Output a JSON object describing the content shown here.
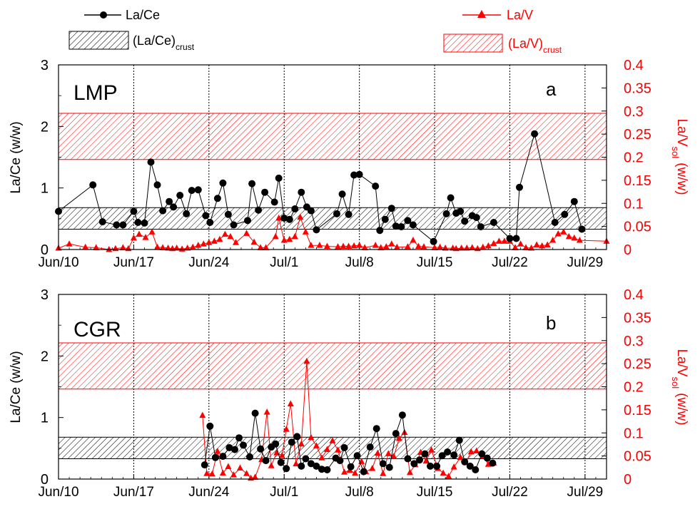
{
  "legend": {
    "la_ce": "La/Ce",
    "la_ce_crust": "(La/Ce)",
    "crust_sub": "crust",
    "la_v": "La/V",
    "la_v_crust": "(La/V)"
  },
  "colors": {
    "la_ce": "#000000",
    "la_v": "#ff0000",
    "crust_band_black": "#000000",
    "crust_band_red": "#ff0000",
    "grid": "#000000"
  },
  "chart_data": [
    {
      "type": "line",
      "panel_label": "LMP",
      "panel_letter": "a",
      "ylabel_left": "La/Ce (w/w)",
      "ylabel_right_main": "La/V",
      "ylabel_right_sub": "sol",
      "ylabel_right_tail": "(w/w)",
      "x_axis": "date",
      "xlim": [
        "Jun/10",
        "Jul/31"
      ],
      "xticks": [
        "Jun/10",
        "Jun/17",
        "Jun/24",
        "Jul/1",
        "Jul/8",
        "Jul/15",
        "Jul/22",
        "Jul/29"
      ],
      "ylim_left": [
        0,
        3
      ],
      "yticks_left": [
        "0",
        "1",
        "2",
        "3"
      ],
      "ylim_right": [
        0,
        0.4
      ],
      "yticks_right": [
        "0",
        "0.05",
        "0.1",
        "0.15",
        "0.2",
        "0.25",
        "0.3",
        "0.35",
        "0.4"
      ],
      "grid": "vertical dotted lines at weekly ticks",
      "bands": [
        {
          "name": "(La/Ce)crust",
          "axis": "left",
          "range": [
            0.33,
            0.68
          ],
          "hatch": "black"
        },
        {
          "name": "(La/V)crust",
          "axis": "right",
          "range": [
            0.195,
            0.295
          ],
          "hatch": "red"
        }
      ],
      "series": [
        {
          "name": "La/Ce",
          "axis": "left",
          "marker": "circle",
          "x": [
            "Jun/10",
            "Jun/13",
            "Jun/14",
            "Jun/15.7",
            "Jun/16.1",
            "Jun/17",
            "Jun/17.5",
            "Jun/18",
            "Jun/18.6",
            "Jun/19",
            "Jun/19.5",
            "Jun/20",
            "Jun/20.5",
            "Jun/21",
            "Jun/21.6",
            "Jun/22",
            "Jun/22.5",
            "Jun/23.1",
            "Jun/23.6",
            "Jun/24.1",
            "Jun/24.6",
            "Jun/25",
            "Jun/26.5",
            "Jun/27",
            "Jun/27.5",
            "Jun/28.6",
            "Jun/29",
            "Jun/29.5",
            "Jun/30",
            "Jun/30.5",
            "Jul/1",
            "Jul/1.5",
            "Jul/2",
            "Jul/2.5",
            "Jul/3",
            "Jul/4.5",
            "Jul/5",
            "Jul/5.5",
            "Jul/6",
            "Jul/7.6",
            "Jul/8",
            "Jul/8.4",
            "Jul/9",
            "Jul/9.4",
            "Jul/9.8",
            "Jul/10.3",
            "Jul/10.7",
            "Jul/12",
            "Jul/13",
            "Jul/13.5",
            "Jul/14",
            "Jul/14.3",
            "Jul/14.6",
            "Jul/15",
            "Jul/15.5",
            "Jul/16",
            "Jul/16.4",
            "Jul/17",
            "Jul/18",
            "Jul/19",
            "Jul/19.5",
            "Jul/20",
            "Jul/21",
            "Jul/21.5",
            "Jul/22.7",
            "Jul/23",
            "Jul/24",
            "Jul/24.6",
            "Jul/25",
            "Jul/26",
            "Jul/27"
          ],
          "y": [
            0.62,
            1.05,
            0.45,
            0.4,
            0.4,
            0.62,
            0.45,
            0.44,
            1.42,
            1.05,
            0.63,
            0.79,
            0.69,
            0.88,
            0.58,
            0.96,
            0.98,
            0.55,
            0.44,
            0.83,
            1.07,
            0.57,
            0.41,
            0.47,
            1.08,
            0.63,
            0.92,
            0.77,
            1.16,
            0.51,
            0.48,
            0.66,
            0.93,
            0.69,
            0.64,
            0.33,
            0.58,
            0.89,
            0.58,
            1.21,
            1.22,
            1.03,
            0.31,
            0.49,
            0.66,
            0.37,
            0.36,
            0.46,
            0.39,
            0.12,
            0.58,
            0.84,
            0.58,
            0.61,
            0.62,
            0.45,
            0.55,
            0.52,
            0.36,
            0.44,
            0.18,
            0.18,
            1.01,
            1.88,
            0.44,
            0.56,
            0.79,
            0.33,
            0.33,
            0.33,
            0.33
          ]
        },
        {
          "name": "La/V",
          "axis": "right",
          "marker": "triangle",
          "note": "values approximate, 0-0.07 range"
        }
      ]
    },
    {
      "type": "line",
      "panel_label": "CGR",
      "panel_letter": "b",
      "ylabel_left": "La/Ce (w/w)",
      "ylabel_right_main": "La/V",
      "ylabel_right_sub": "sol",
      "ylabel_right_tail": "(w/w)",
      "x_axis": "date",
      "xlim": [
        "Jun/10",
        "Jul/31"
      ],
      "xticks": [
        "Jun/10",
        "Jun/17",
        "Jun/24",
        "Jul/1",
        "Jul/8",
        "Jul/15",
        "Jul/22",
        "Jul/29"
      ],
      "ylim_left": [
        0,
        3
      ],
      "yticks_left": [
        "0",
        "1",
        "2",
        "3"
      ],
      "ylim_right": [
        0,
        0.4
      ],
      "yticks_right": [
        "0",
        "0.05",
        "0.1",
        "0.15",
        "0.2",
        "0.25",
        "0.3",
        "0.35",
        "0.4"
      ],
      "grid": "vertical dotted lines at weekly ticks",
      "bands": [
        {
          "name": "(La/Ce)crust",
          "axis": "left",
          "range": [
            0.33,
            0.68
          ],
          "hatch": "black"
        },
        {
          "name": "(La/V)crust",
          "axis": "right",
          "range": [
            0.195,
            0.295
          ],
          "hatch": "red"
        }
      ],
      "series": [
        {
          "name": "La/Ce",
          "axis": "left",
          "marker": "circle"
        },
        {
          "name": "La/V",
          "axis": "right",
          "marker": "triangle"
        }
      ]
    }
  ],
  "plot_series": {
    "a_lace": [
      [
        0,
        0.62
      ],
      [
        3.2,
        1.05
      ],
      [
        4.1,
        0.45
      ],
      [
        5.4,
        0.4
      ],
      [
        6.0,
        0.4
      ],
      [
        7.0,
        0.62
      ],
      [
        7.4,
        0.44
      ],
      [
        8.0,
        0.43
      ],
      [
        8.6,
        1.42
      ],
      [
        9.2,
        1.05
      ],
      [
        9.7,
        0.63
      ],
      [
        10.3,
        0.78
      ],
      [
        10.7,
        0.69
      ],
      [
        11.3,
        0.88
      ],
      [
        11.9,
        0.58
      ],
      [
        12.4,
        0.96
      ],
      [
        13.0,
        0.97
      ],
      [
        13.7,
        0.55
      ],
      [
        14.1,
        0.44
      ],
      [
        14.8,
        0.83
      ],
      [
        15.3,
        1.08
      ],
      [
        15.8,
        0.57
      ],
      [
        16.3,
        0.4
      ],
      [
        17.6,
        0.47
      ],
      [
        18.0,
        1.07
      ],
      [
        18.6,
        0.64
      ],
      [
        19.2,
        0.93
      ],
      [
        20.1,
        0.77
      ],
      [
        20.5,
        1.16
      ],
      [
        21.0,
        0.51
      ],
      [
        21.5,
        0.49
      ],
      [
        22.0,
        0.66
      ],
      [
        22.6,
        0.93
      ],
      [
        23.1,
        0.69
      ],
      [
        23.5,
        0.63
      ],
      [
        24.0,
        0.32
      ],
      [
        25.9,
        0.58
      ],
      [
        26.4,
        0.9
      ],
      [
        27.0,
        0.57
      ],
      [
        27.5,
        1.21
      ],
      [
        28.0,
        1.22
      ],
      [
        29.5,
        1.03
      ],
      [
        29.9,
        0.31
      ],
      [
        30.4,
        0.49
      ],
      [
        31.0,
        0.67
      ],
      [
        31.4,
        0.38
      ],
      [
        31.9,
        0.37
      ],
      [
        32.5,
        0.47
      ],
      [
        33.0,
        0.4
      ],
      [
        34.9,
        0.13
      ],
      [
        36.1,
        0.58
      ],
      [
        36.5,
        0.84
      ],
      [
        37.0,
        0.59
      ],
      [
        37.4,
        0.62
      ],
      [
        37.8,
        0.46
      ],
      [
        38.5,
        0.55
      ],
      [
        38.9,
        0.52
      ],
      [
        39.3,
        0.37
      ],
      [
        40.5,
        0.44
      ],
      [
        42.0,
        0.18
      ],
      [
        42.6,
        0.18
      ],
      [
        42.9,
        1.01
      ],
      [
        44.3,
        1.88
      ],
      [
        46.2,
        0.44
      ],
      [
        47.1,
        0.57
      ],
      [
        48.0,
        0.78
      ],
      [
        48.7,
        0.33
      ]
    ],
    "a_lav": [
      [
        0,
        0.003
      ],
      [
        1.0,
        0.012
      ],
      [
        2.5,
        0.005
      ],
      [
        3.5,
        0.004
      ],
      [
        4.7,
        0.0
      ],
      [
        5.3,
        0.002
      ],
      [
        6.0,
        0.004
      ],
      [
        6.5,
        0.002
      ],
      [
        7.0,
        0.025
      ],
      [
        7.5,
        0.033
      ],
      [
        8.1,
        0.026
      ],
      [
        8.7,
        0.038
      ],
      [
        9.2,
        0.005
      ],
      [
        9.7,
        0.004
      ],
      [
        10.2,
        0.003
      ],
      [
        10.6,
        0.002
      ],
      [
        11.0,
        0.003
      ],
      [
        11.5,
        0.001
      ],
      [
        12.0,
        0.003
      ],
      [
        12.5,
        0.005
      ],
      [
        13.0,
        0.009
      ],
      [
        13.5,
        0.012
      ],
      [
        14.0,
        0.015
      ],
      [
        14.5,
        0.018
      ],
      [
        15.0,
        0.022
      ],
      [
        15.5,
        0.033
      ],
      [
        16.0,
        0.028
      ],
      [
        16.5,
        0.015
      ],
      [
        17.5,
        0.035
      ],
      [
        18.2,
        0.016
      ],
      [
        18.8,
        0.004
      ],
      [
        19.3,
        0.004
      ],
      [
        20.2,
        0.028
      ],
      [
        20.5,
        0.068
      ],
      [
        21.0,
        0.02
      ],
      [
        21.5,
        0.022
      ],
      [
        22.0,
        0.028
      ],
      [
        22.5,
        0.07
      ],
      [
        23.0,
        0.038
      ],
      [
        23.5,
        0.009
      ],
      [
        24.3,
        0.009
      ],
      [
        25.0,
        0.007
      ],
      [
        26.0,
        0.006
      ],
      [
        26.5,
        0.007
      ],
      [
        27.0,
        0.007
      ],
      [
        27.5,
        0.008
      ],
      [
        28.0,
        0.009
      ],
      [
        28.5,
        0.004
      ],
      [
        29.5,
        0.009
      ],
      [
        30.0,
        0.004
      ],
      [
        30.5,
        0.006
      ],
      [
        31.0,
        0.012
      ],
      [
        31.5,
        0.005
      ],
      [
        32.5,
        0.006
      ],
      [
        33.0,
        0.02
      ],
      [
        33.5,
        0.007
      ],
      [
        34.0,
        0.006
      ],
      [
        35.0,
        0.004
      ],
      [
        35.5,
        0.005
      ],
      [
        36.0,
        0.003
      ],
      [
        36.7,
        0.003
      ],
      [
        37.0,
        0.002
      ],
      [
        37.5,
        0.003
      ],
      [
        38.0,
        0.003
      ],
      [
        38.5,
        0.004
      ],
      [
        39.0,
        0.002
      ],
      [
        39.5,
        0.005
      ],
      [
        40.0,
        0.008
      ],
      [
        40.5,
        0.013
      ],
      [
        41.0,
        0.018
      ],
      [
        41.5,
        0.018
      ],
      [
        42.0,
        0.018
      ],
      [
        42.5,
        0.004
      ],
      [
        43.0,
        0.012
      ],
      [
        43.5,
        0.004
      ],
      [
        44.0,
        0.003
      ],
      [
        44.5,
        0.01
      ],
      [
        45.0,
        0.008
      ],
      [
        45.5,
        0.01
      ],
      [
        46.0,
        0.02
      ],
      [
        46.5,
        0.034
      ],
      [
        47.0,
        0.038
      ],
      [
        47.5,
        0.028
      ],
      [
        48.0,
        0.025
      ],
      [
        48.5,
        0.02
      ],
      [
        51.0,
        0.018
      ]
    ],
    "b_lace": [
      [
        13.6,
        0.23
      ],
      [
        14.1,
        0.86
      ],
      [
        14.6,
        0.35
      ],
      [
        15.3,
        0.37
      ],
      [
        15.9,
        0.51
      ],
      [
        16.4,
        0.48
      ],
      [
        16.8,
        0.67
      ],
      [
        17.2,
        0.55
      ],
      [
        17.8,
        0.36
      ],
      [
        18.3,
        1.07
      ],
      [
        18.8,
        0.49
      ],
      [
        19.3,
        0.3
      ],
      [
        19.8,
        0.52
      ],
      [
        20.2,
        0.57
      ],
      [
        20.7,
        0.27
      ],
      [
        21.2,
        0.17
      ],
      [
        21.7,
        0.6
      ],
      [
        22.2,
        0.69
      ],
      [
        22.6,
        0.21
      ],
      [
        23.0,
        0.33
      ],
      [
        23.5,
        0.25
      ],
      [
        24.0,
        0.21
      ],
      [
        24.5,
        0.16
      ],
      [
        25.0,
        0.15
      ],
      [
        25.8,
        0.34
      ],
      [
        26.2,
        0.3
      ],
      [
        26.6,
        0.51
      ],
      [
        27.2,
        0.2
      ],
      [
        27.8,
        0.38
      ],
      [
        28.4,
        0.12
      ],
      [
        29.0,
        0.52
      ],
      [
        29.6,
        0.82
      ],
      [
        30.2,
        0.25
      ],
      [
        30.8,
        0.19
      ],
      [
        31.4,
        0.74
      ],
      [
        32.0,
        1.04
      ],
      [
        32.5,
        0.33
      ],
      [
        33.1,
        0.25
      ],
      [
        33.6,
        0.31
      ],
      [
        34.1,
        0.41
      ],
      [
        34.6,
        0.21
      ],
      [
        35.2,
        0.21
      ],
      [
        35.7,
        0.38
      ],
      [
        36.2,
        0.44
      ],
      [
        36.8,
        0.39
      ],
      [
        37.3,
        0.63
      ],
      [
        37.8,
        0.28
      ],
      [
        38.3,
        0.21
      ],
      [
        38.8,
        0.15
      ],
      [
        39.4,
        0.41
      ],
      [
        39.9,
        0.34
      ],
      [
        40.4,
        0.26
      ]
    ],
    "b_lav": [
      [
        13.4,
        0.138
      ],
      [
        13.8,
        0.012
      ],
      [
        14.3,
        0.011
      ],
      [
        14.8,
        0.06
      ],
      [
        15.3,
        0.013
      ],
      [
        15.8,
        0.027
      ],
      [
        16.3,
        0.009
      ],
      [
        16.9,
        0.024
      ],
      [
        17.5,
        0.012
      ],
      [
        17.9,
        0.002
      ],
      [
        18.3,
        0.004
      ],
      [
        18.9,
        0.042
      ],
      [
        19.4,
        0.145
      ],
      [
        19.8,
        0.029
      ],
      [
        20.3,
        0.057
      ],
      [
        20.8,
        0.051
      ],
      [
        21.2,
        0.108
      ],
      [
        21.6,
        0.163
      ],
      [
        22.1,
        0.033
      ],
      [
        22.6,
        0.076
      ],
      [
        23.1,
        0.255
      ],
      [
        23.5,
        0.09
      ],
      [
        24.0,
        0.072
      ],
      [
        24.5,
        0.046
      ],
      [
        25.0,
        0.064
      ],
      [
        25.5,
        0.083
      ],
      [
        26.0,
        0.063
      ],
      [
        26.6,
        0.015
      ],
      [
        27.1,
        0.019
      ],
      [
        27.6,
        0.013
      ],
      [
        28.2,
        0.038
      ],
      [
        28.6,
        0.016
      ],
      [
        29.2,
        0.023
      ],
      [
        29.7,
        0.056
      ],
      [
        30.2,
        0.012
      ],
      [
        30.7,
        0.055
      ],
      [
        31.2,
        0.049
      ],
      [
        31.7,
        0.088
      ],
      [
        32.2,
        0.101
      ],
      [
        32.7,
        0.014
      ],
      [
        33.2,
        0.031
      ],
      [
        33.7,
        0.058
      ],
      [
        34.2,
        0.039
      ],
      [
        34.7,
        0.063
      ],
      [
        35.3,
        0.023
      ],
      [
        35.8,
        0.013
      ],
      [
        36.3,
        0.006
      ],
      [
        36.8,
        0.026
      ],
      [
        37.4,
        0.047
      ],
      [
        37.9,
        0.036
      ],
      [
        38.4,
        0.059
      ],
      [
        38.9,
        0.061
      ],
      [
        39.5,
        0.05
      ],
      [
        40.0,
        0.032
      ],
      [
        40.5,
        0.035
      ]
    ]
  }
}
